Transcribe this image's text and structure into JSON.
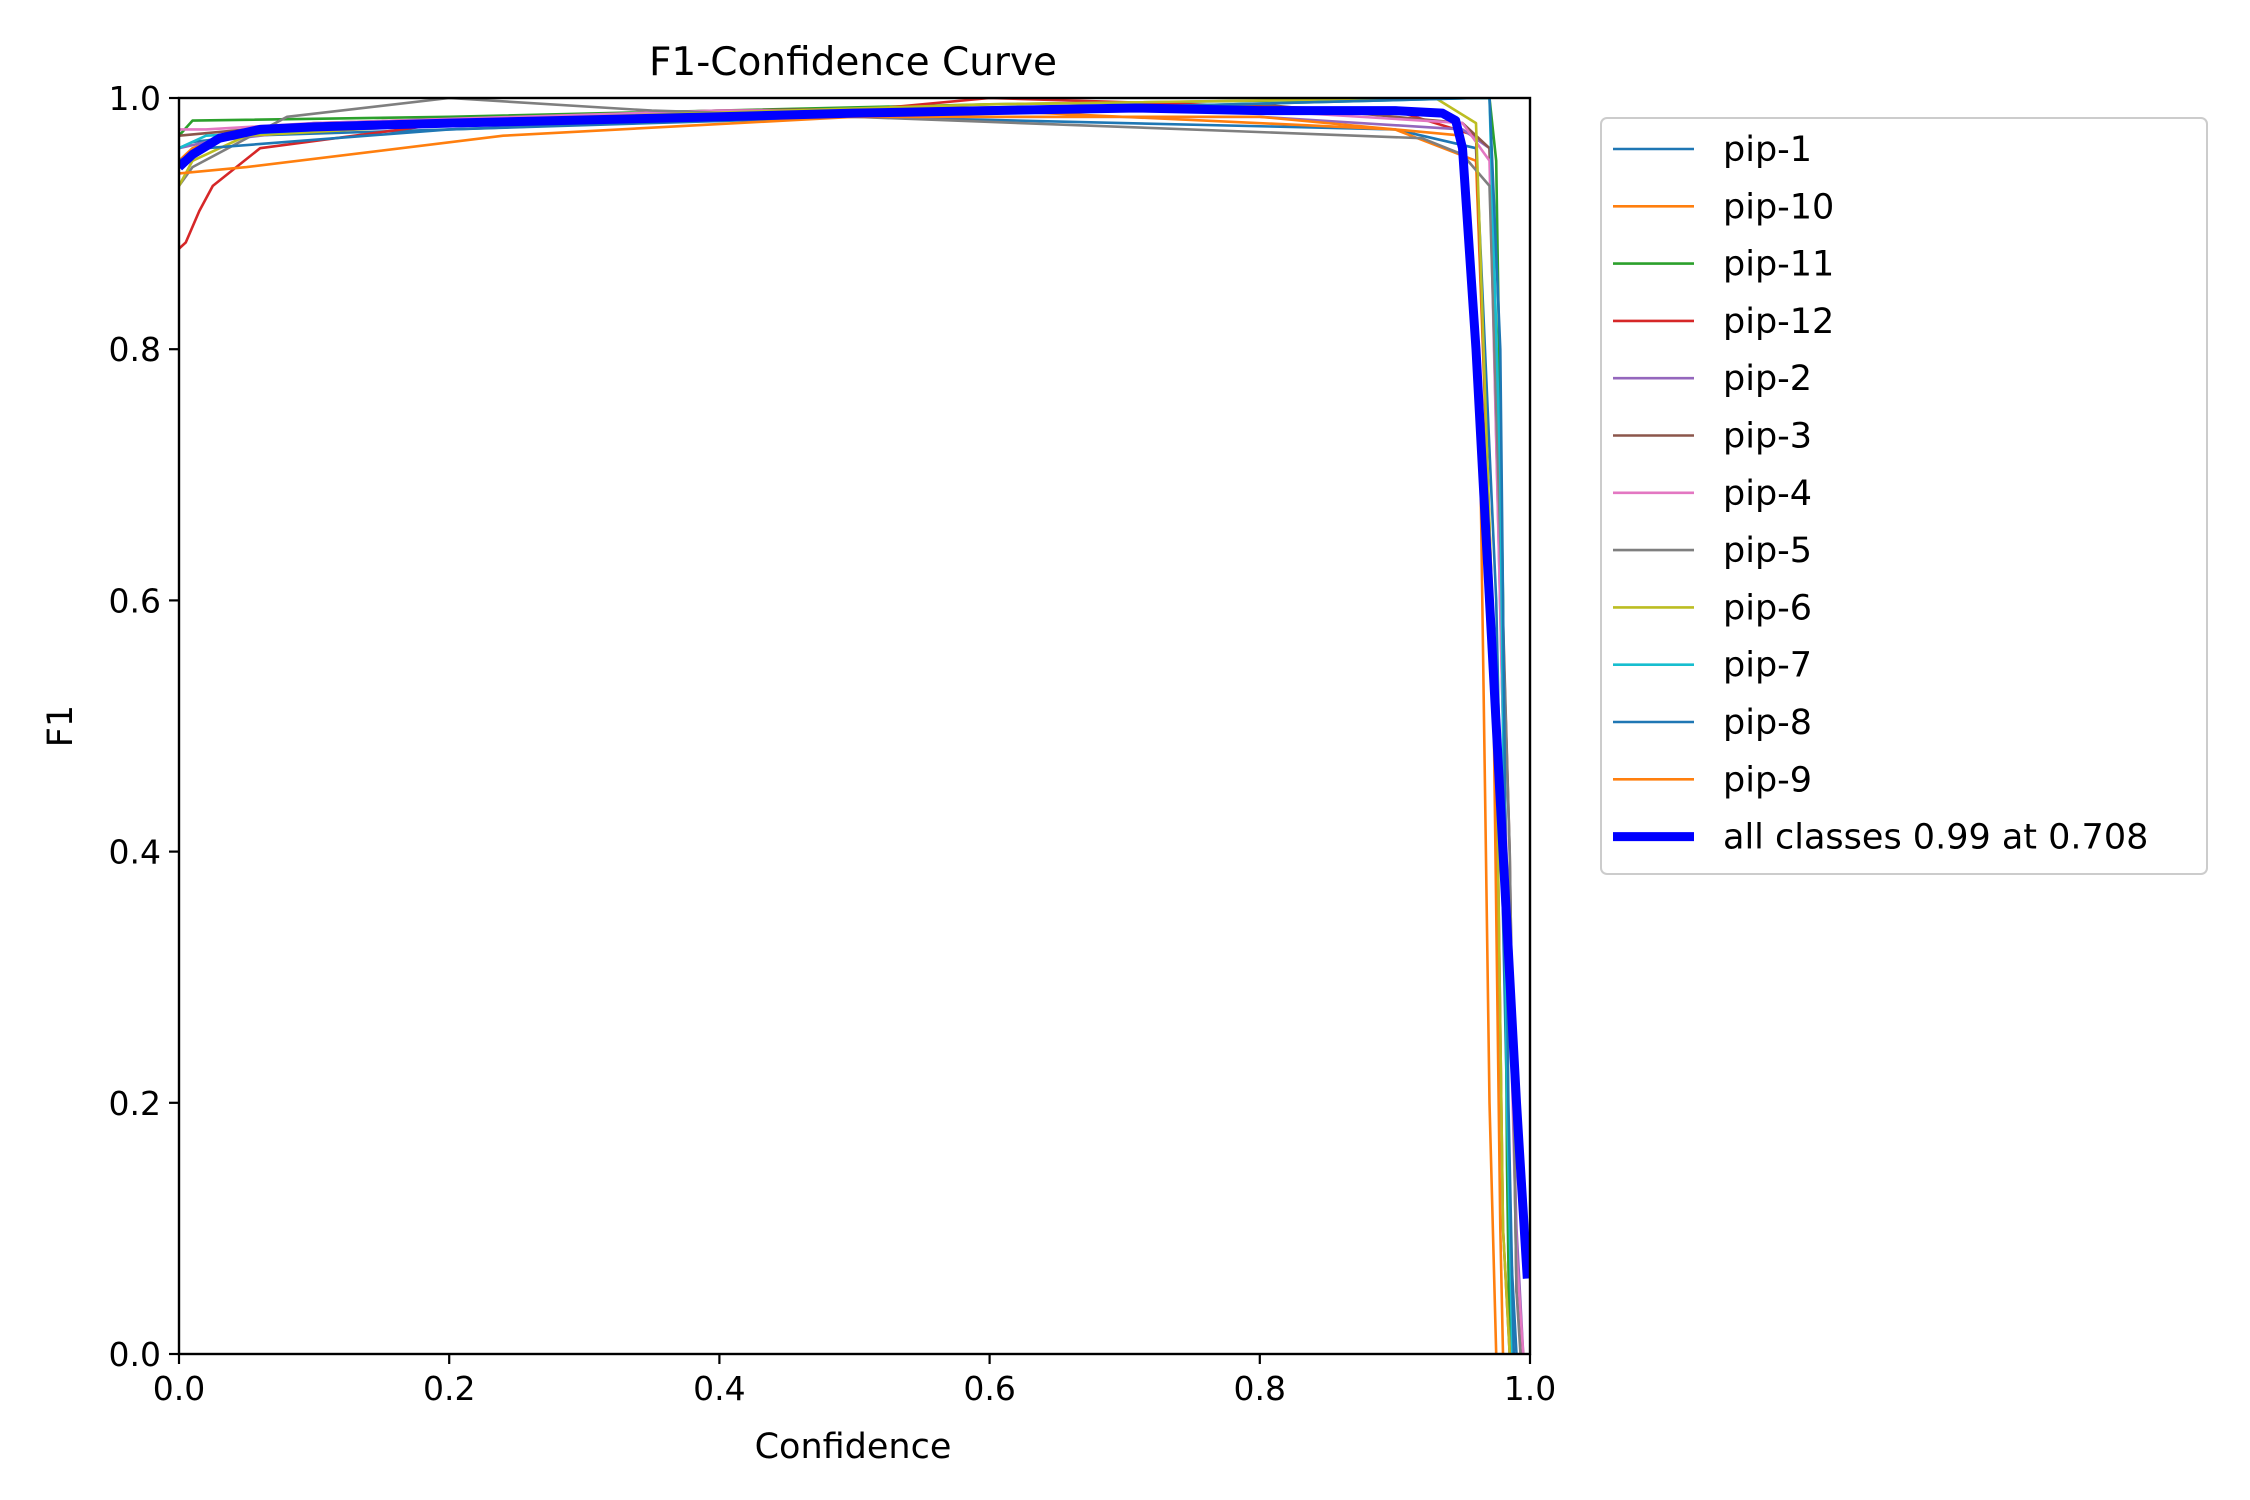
{
  "chart_data": {
    "type": "line",
    "title": "F1-Confidence Curve",
    "xlabel": "Confidence",
    "ylabel": "F1",
    "xlim": [
      0.0,
      1.0
    ],
    "ylim": [
      0.0,
      1.0
    ],
    "xticks": [
      "0.0",
      "0.2",
      "0.4",
      "0.6",
      "0.8",
      "1.0"
    ],
    "yticks": [
      "0.0",
      "0.2",
      "0.4",
      "0.6",
      "0.8",
      "1.0"
    ],
    "grid": false,
    "legend_position": "outside-right",
    "series": [
      {
        "name": "pip-1",
        "color": "#1f77b4",
        "x": [
          0.0,
          0.01,
          0.05,
          0.2,
          0.5,
          0.9,
          0.96,
          0.975,
          0.985,
          0.99
        ],
        "y": [
          0.96,
          0.965,
          0.97,
          0.975,
          0.985,
          0.975,
          0.96,
          0.6,
          0.1,
          0.0
        ]
      },
      {
        "name": "pip-10",
        "color": "#ff7f0e",
        "x": [
          0.0,
          0.01,
          0.05,
          0.3,
          0.6,
          0.9,
          0.96,
          0.972,
          0.978,
          0.98
        ],
        "y": [
          0.95,
          0.96,
          0.975,
          0.985,
          0.99,
          0.975,
          0.95,
          0.6,
          0.1,
          0.0
        ]
      },
      {
        "name": "pip-11",
        "color": "#2ca02c",
        "x": [
          0.0,
          0.01,
          0.2,
          0.6,
          0.95,
          0.97,
          0.975,
          0.98,
          0.983,
          0.985
        ],
        "y": [
          0.97,
          0.982,
          0.985,
          0.995,
          1.0,
          1.0,
          0.95,
          0.6,
          0.15,
          0.0
        ]
      },
      {
        "name": "pip-12",
        "color": "#d62728",
        "x": [
          0.0,
          0.005,
          0.015,
          0.025,
          0.06,
          0.2,
          0.5,
          0.6,
          0.9,
          0.96,
          0.975,
          0.98,
          0.985
        ],
        "y": [
          0.88,
          0.885,
          0.91,
          0.93,
          0.96,
          0.98,
          0.99,
          1.0,
          0.99,
          0.97,
          0.5,
          0.1,
          0.0
        ]
      },
      {
        "name": "pip-2",
        "color": "#9467bd",
        "x": [
          0.0,
          0.02,
          0.1,
          0.4,
          0.8,
          0.95,
          0.97,
          0.98,
          0.99,
          0.995
        ],
        "y": [
          0.96,
          0.965,
          0.975,
          0.985,
          0.985,
          0.975,
          0.96,
          0.5,
          0.1,
          0.0
        ]
      },
      {
        "name": "pip-3",
        "color": "#8c564b",
        "x": [
          0.0,
          0.02,
          0.1,
          0.4,
          0.8,
          0.95,
          0.97,
          0.985,
          0.99,
          0.995
        ],
        "y": [
          0.97,
          0.972,
          0.98,
          0.99,
          0.995,
          0.98,
          0.96,
          0.4,
          0.05,
          0.0
        ]
      },
      {
        "name": "pip-4",
        "color": "#e377c2",
        "x": [
          0.0,
          0.02,
          0.1,
          0.4,
          0.8,
          0.95,
          0.97,
          0.98,
          0.99,
          0.995
        ],
        "y": [
          0.975,
          0.975,
          0.98,
          0.99,
          0.99,
          0.98,
          0.95,
          0.5,
          0.08,
          0.0
        ]
      },
      {
        "name": "pip-5",
        "color": "#7f7f7f",
        "x": [
          0.0,
          0.01,
          0.08,
          0.2,
          0.35,
          0.5,
          0.92,
          0.95,
          0.97,
          0.985,
          0.99,
          0.993
        ],
        "y": [
          0.93,
          0.945,
          0.985,
          1.0,
          0.99,
          0.985,
          0.968,
          0.955,
          0.93,
          0.4,
          0.05,
          0.0
        ]
      },
      {
        "name": "pip-6",
        "color": "#bcbd22",
        "x": [
          0.0,
          0.01,
          0.05,
          0.3,
          0.6,
          0.93,
          0.96,
          0.975,
          0.98,
          0.985
        ],
        "y": [
          0.93,
          0.95,
          0.97,
          0.985,
          0.995,
          1.0,
          0.98,
          0.5,
          0.1,
          0.0
        ]
      },
      {
        "name": "pip-7",
        "color": "#17becf",
        "x": [
          0.0,
          0.02,
          0.2,
          0.6,
          0.96,
          0.97,
          0.978,
          0.983,
          0.987
        ],
        "y": [
          0.96,
          0.97,
          0.98,
          0.99,
          1.0,
          1.0,
          0.7,
          0.2,
          0.0
        ]
      },
      {
        "name": "pip-8",
        "color": "#1f77b4",
        "x": [
          0.0,
          0.02,
          0.2,
          0.6,
          0.96,
          0.97,
          0.978,
          0.984,
          0.988
        ],
        "y": [
          0.95,
          0.96,
          0.975,
          0.99,
          1.0,
          1.0,
          0.8,
          0.2,
          0.0
        ]
      },
      {
        "name": "pip-9",
        "color": "#ff7f0e",
        "x": [
          0.0,
          0.05,
          0.24,
          0.5,
          0.8,
          0.95,
          0.962,
          0.97,
          0.975
        ],
        "y": [
          0.94,
          0.945,
          0.97,
          0.985,
          0.985,
          0.97,
          0.8,
          0.2,
          0.0
        ]
      },
      {
        "name": "all classes 0.99 at 0.708",
        "color": "#0000ff",
        "x": [
          0.0,
          0.01,
          0.03,
          0.06,
          0.1,
          0.2,
          0.4,
          0.5,
          0.6,
          0.708,
          0.8,
          0.9,
          0.935,
          0.945,
          0.95,
          0.96,
          0.97,
          0.98,
          0.99,
          0.998
        ],
        "y": [
          0.945,
          0.955,
          0.968,
          0.975,
          0.977,
          0.98,
          0.985,
          0.988,
          0.99,
          0.992,
          0.99,
          0.99,
          0.988,
          0.982,
          0.96,
          0.8,
          0.6,
          0.4,
          0.2,
          0.06
        ],
        "thick": true
      }
    ]
  }
}
